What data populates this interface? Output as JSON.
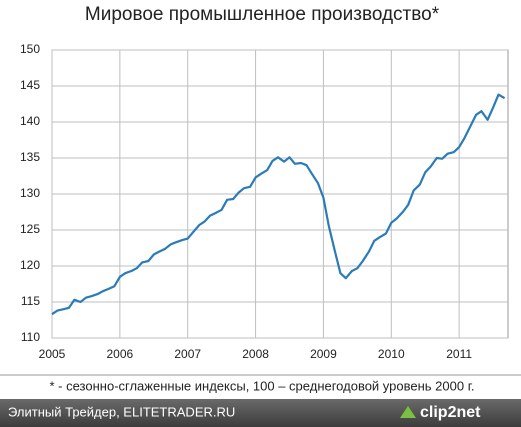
{
  "chart_data": {
    "type": "line",
    "title": "Мировое промышленное производство*",
    "note": "* - сезонно-сглаженные индексы, 100 – среднегодовой уровень 2000 г.",
    "x": [
      2005.0,
      2005.08,
      2005.17,
      2005.25,
      2005.33,
      2005.42,
      2005.5,
      2005.58,
      2005.67,
      2005.75,
      2005.83,
      2005.92,
      2006.0,
      2006.08,
      2006.17,
      2006.25,
      2006.33,
      2006.42,
      2006.5,
      2006.58,
      2006.67,
      2006.75,
      2006.83,
      2006.92,
      2007.0,
      2007.08,
      2007.17,
      2007.25,
      2007.33,
      2007.42,
      2007.5,
      2007.58,
      2007.67,
      2007.75,
      2007.83,
      2007.92,
      2008.0,
      2008.08,
      2008.17,
      2008.25,
      2008.33,
      2008.42,
      2008.5,
      2008.58,
      2008.67,
      2008.75,
      2008.83,
      2008.92,
      2009.0,
      2009.08,
      2009.17,
      2009.25,
      2009.33,
      2009.42,
      2009.5,
      2009.58,
      2009.67,
      2009.75,
      2009.83,
      2009.92,
      2010.0,
      2010.08,
      2010.17,
      2010.25,
      2010.33,
      2010.42,
      2010.5,
      2010.58,
      2010.67,
      2010.75,
      2010.83,
      2010.92,
      2011.0,
      2011.08,
      2011.17,
      2011.25,
      2011.33,
      2011.42,
      2011.5,
      2011.58,
      2011.67
    ],
    "series": [
      {
        "color": "#2b7bb9",
        "values": [
          113.3,
          113.8,
          114.0,
          114.2,
          115.3,
          115.0,
          115.6,
          115.8,
          116.1,
          116.5,
          116.8,
          117.2,
          118.5,
          119.0,
          119.3,
          119.7,
          120.5,
          120.7,
          121.6,
          122.0,
          122.4,
          123.0,
          123.3,
          123.6,
          123.8,
          124.7,
          125.7,
          126.2,
          127.0,
          127.4,
          127.8,
          129.2,
          129.3,
          130.2,
          130.8,
          131.0,
          132.3,
          132.8,
          133.3,
          134.6,
          135.1,
          134.5,
          135.1,
          134.2,
          134.3,
          134.0,
          132.8,
          131.5,
          129.5,
          125.5,
          122.0,
          119.0,
          118.3,
          119.3,
          119.7,
          120.7,
          122.0,
          123.5,
          124.0,
          124.5,
          126.0,
          126.6,
          127.5,
          128.5,
          130.5,
          131.3,
          133.0,
          133.8,
          135.0,
          134.9,
          135.6,
          135.8,
          136.5,
          137.8,
          139.5,
          141.0,
          141.5,
          140.3,
          142.0,
          143.8,
          143.3
        ]
      }
    ],
    "xlim": [
      2005,
      2011.72
    ],
    "xticks": [
      2005,
      2006,
      2007,
      2008,
      2009,
      2010,
      2011
    ],
    "ylim": [
      110,
      150
    ],
    "yticks": [
      110,
      115,
      120,
      125,
      130,
      135,
      140,
      145,
      150
    ],
    "grid": true
  },
  "footer": {
    "source": "Элитный Трейдер, ELITETRADER.RU",
    "logo": "clip2net"
  }
}
